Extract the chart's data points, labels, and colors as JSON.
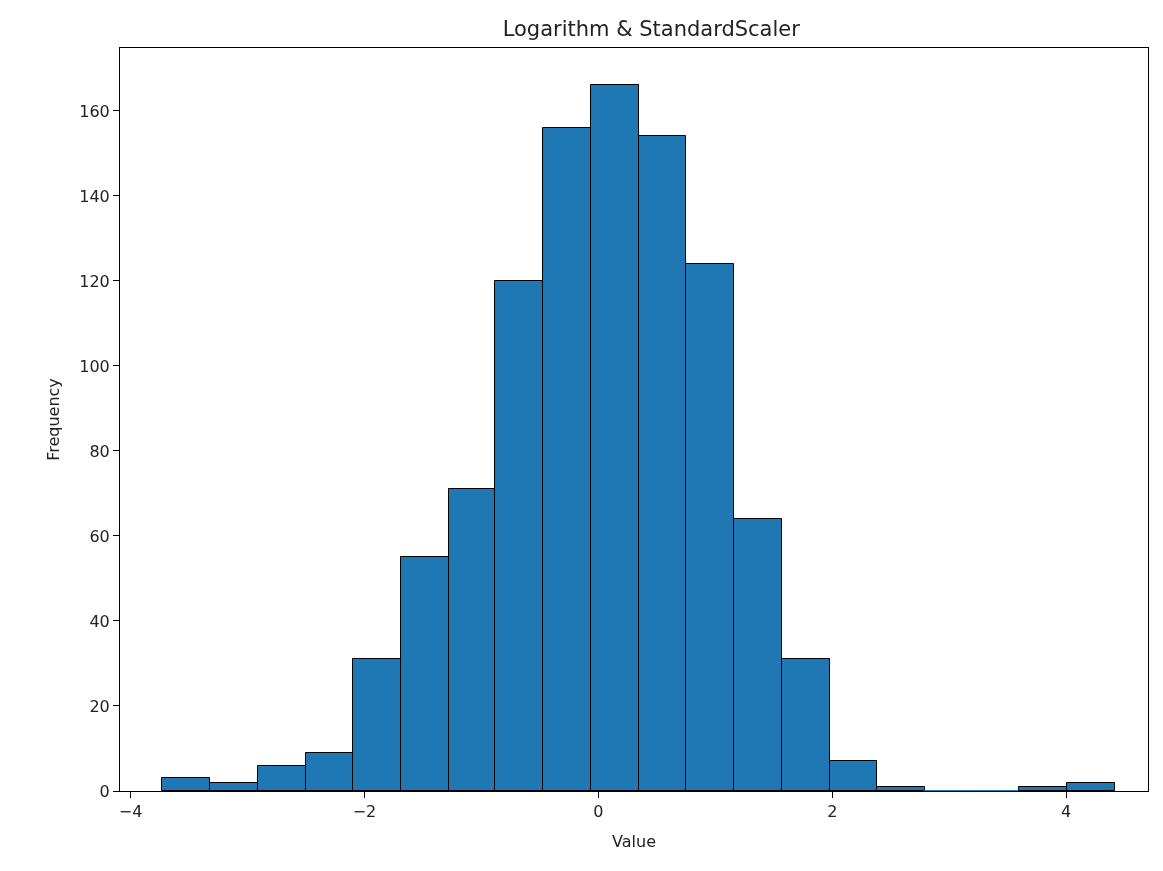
{
  "chart_data": {
    "type": "histogram",
    "title": "Logarithm & StandardScaler",
    "xlabel": "Value",
    "ylabel": "Frequency",
    "bins": [
      -3.73,
      -3.32,
      -2.91,
      -2.5,
      -2.1,
      -1.69,
      -1.28,
      -0.88,
      -0.47,
      -0.06,
      0.35,
      0.75,
      1.16,
      1.57,
      1.98,
      2.38,
      2.79,
      3.2,
      3.6,
      4.01,
      4.42
    ],
    "values": [
      3,
      2,
      6,
      9,
      31,
      55,
      71,
      120,
      156,
      166,
      154,
      124,
      64,
      31,
      7,
      1,
      0,
      0,
      1,
      2
    ],
    "color": "#1f77b4",
    "xlim": [
      -4.09,
      4.7
    ],
    "xticks": [
      {
        "value": -4,
        "label": "−4"
      },
      {
        "value": -2,
        "label": "−2"
      },
      0,
      2,
      4
    ],
    "ylim": [
      0,
      174.8
    ],
    "yticks": [
      0,
      20,
      40,
      60,
      80,
      100,
      120,
      140,
      160
    ]
  }
}
